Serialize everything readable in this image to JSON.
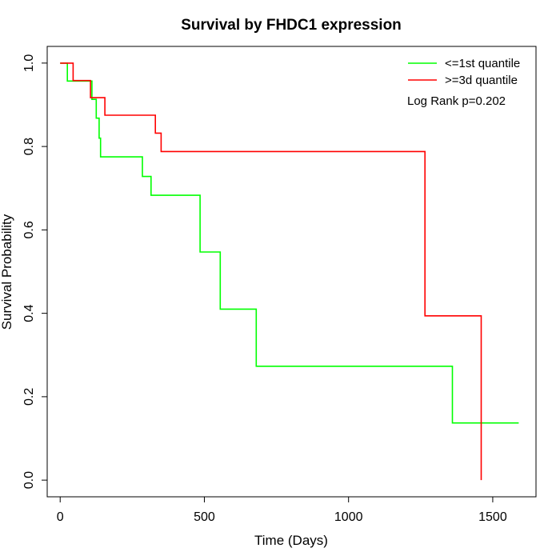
{
  "chart_data": {
    "type": "line",
    "title": "Survival by FHDC1 expression",
    "xlabel": "Time (Days)",
    "ylabel": "Survival Probability",
    "xlim": [
      -45,
      1650
    ],
    "ylim": [
      -0.04,
      1.04
    ],
    "x_ticks": [
      0,
      500,
      1000,
      1500
    ],
    "y_ticks": [
      0.0,
      0.2,
      0.4,
      0.6,
      0.8,
      1.0
    ],
    "x_tick_labels": [
      "0",
      "500",
      "1000",
      "1500"
    ],
    "y_tick_labels": [
      "0.0",
      "0.2",
      "0.4",
      "0.6",
      "0.8",
      "1.0"
    ],
    "grid": false,
    "legend_position": "top-right",
    "annotation": "Log Rank p=0.202",
    "series": [
      {
        "name": "<=1st quantile",
        "color": "#00ff00",
        "step_points": [
          [
            0,
            1.0
          ],
          [
            25,
            1.0
          ],
          [
            25,
            0.957
          ],
          [
            110,
            0.957
          ],
          [
            110,
            0.913
          ],
          [
            125,
            0.913
          ],
          [
            125,
            0.868
          ],
          [
            135,
            0.868
          ],
          [
            135,
            0.82
          ],
          [
            140,
            0.82
          ],
          [
            140,
            0.775
          ],
          [
            285,
            0.775
          ],
          [
            285,
            0.728
          ],
          [
            315,
            0.728
          ],
          [
            315,
            0.683
          ],
          [
            485,
            0.683
          ],
          [
            485,
            0.547
          ],
          [
            555,
            0.547
          ],
          [
            555,
            0.41
          ],
          [
            680,
            0.41
          ],
          [
            680,
            0.273
          ],
          [
            1360,
            0.273
          ],
          [
            1360,
            0.137
          ],
          [
            1590,
            0.137
          ]
        ]
      },
      {
        "name": ">=3d quantile",
        "color": "#ff0000",
        "step_points": [
          [
            0,
            1.0
          ],
          [
            45,
            1.0
          ],
          [
            45,
            0.958
          ],
          [
            105,
            0.958
          ],
          [
            105,
            0.917
          ],
          [
            155,
            0.917
          ],
          [
            155,
            0.875
          ],
          [
            330,
            0.875
          ],
          [
            330,
            0.832
          ],
          [
            350,
            0.832
          ],
          [
            350,
            0.788
          ],
          [
            1265,
            0.788
          ],
          [
            1265,
            0.394
          ],
          [
            1460,
            0.394
          ],
          [
            1460,
            0.0
          ]
        ]
      }
    ]
  }
}
